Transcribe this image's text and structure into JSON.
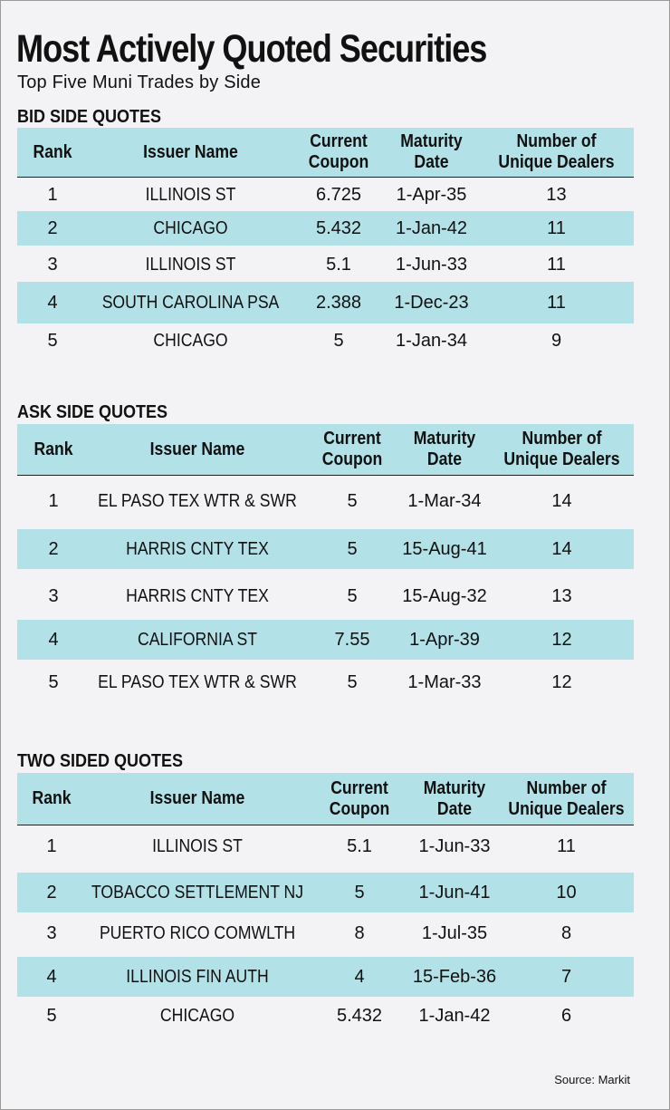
{
  "title": "Most Actively Quoted Securities",
  "subtitle": "Top Five Muni Trades by Side",
  "source": "Source: Markit",
  "colors": {
    "row_shade": "#b2e1e8",
    "background": "#f3f3f5"
  },
  "chart_data": {
    "type": "table",
    "columns": [
      "Rank",
      "Issuer Name",
      "Current Coupon",
      "Maturity Date",
      "Number of Unique Dealers"
    ],
    "tables": [
      {
        "name": "BID SIDE QUOTES",
        "rows": [
          [
            "1",
            "ILLINOIS ST",
            "6.725",
            "1-Apr-35",
            "13"
          ],
          [
            "2",
            "CHICAGO",
            "5.432",
            "1-Jan-42",
            "11"
          ],
          [
            "3",
            "ILLINOIS ST",
            "5.1",
            "1-Jun-33",
            "11"
          ],
          [
            "4",
            "SOUTH CAROLINA PSA",
            "2.388",
            "1-Dec-23",
            "11"
          ],
          [
            "5",
            "CHICAGO",
            "5",
            "1-Jan-34",
            "9"
          ]
        ]
      },
      {
        "name": "ASK SIDE QUOTES",
        "rows": [
          [
            "1",
            "EL PASO TEX WTR & SWR",
            "5",
            "1-Mar-34",
            "14"
          ],
          [
            "2",
            "HARRIS CNTY TEX",
            "5",
            "15-Aug-41",
            "14"
          ],
          [
            "3",
            "HARRIS CNTY TEX",
            "5",
            "15-Aug-32",
            "13"
          ],
          [
            "4",
            "CALIFORNIA ST",
            "7.55",
            "1-Apr-39",
            "12"
          ],
          [
            "5",
            "EL PASO TEX WTR & SWR",
            "5",
            "1-Mar-33",
            "12"
          ]
        ]
      },
      {
        "name": "TWO SIDED QUOTES",
        "rows": [
          [
            "1",
            "ILLINOIS ST",
            "5.1",
            "1-Jun-33",
            "11"
          ],
          [
            "2",
            "TOBACCO SETTLEMENT NJ",
            "5",
            "1-Jun-41",
            "10"
          ],
          [
            "3",
            "PUERTO RICO COMWLTH",
            "8",
            "1-Jul-35",
            "8"
          ],
          [
            "4",
            "ILLINOIS FIN AUTH",
            "4",
            "15-Feb-36",
            "7"
          ],
          [
            "5",
            "CHICAGO",
            "5.432",
            "1-Jan-42",
            "6"
          ]
        ]
      }
    ]
  }
}
